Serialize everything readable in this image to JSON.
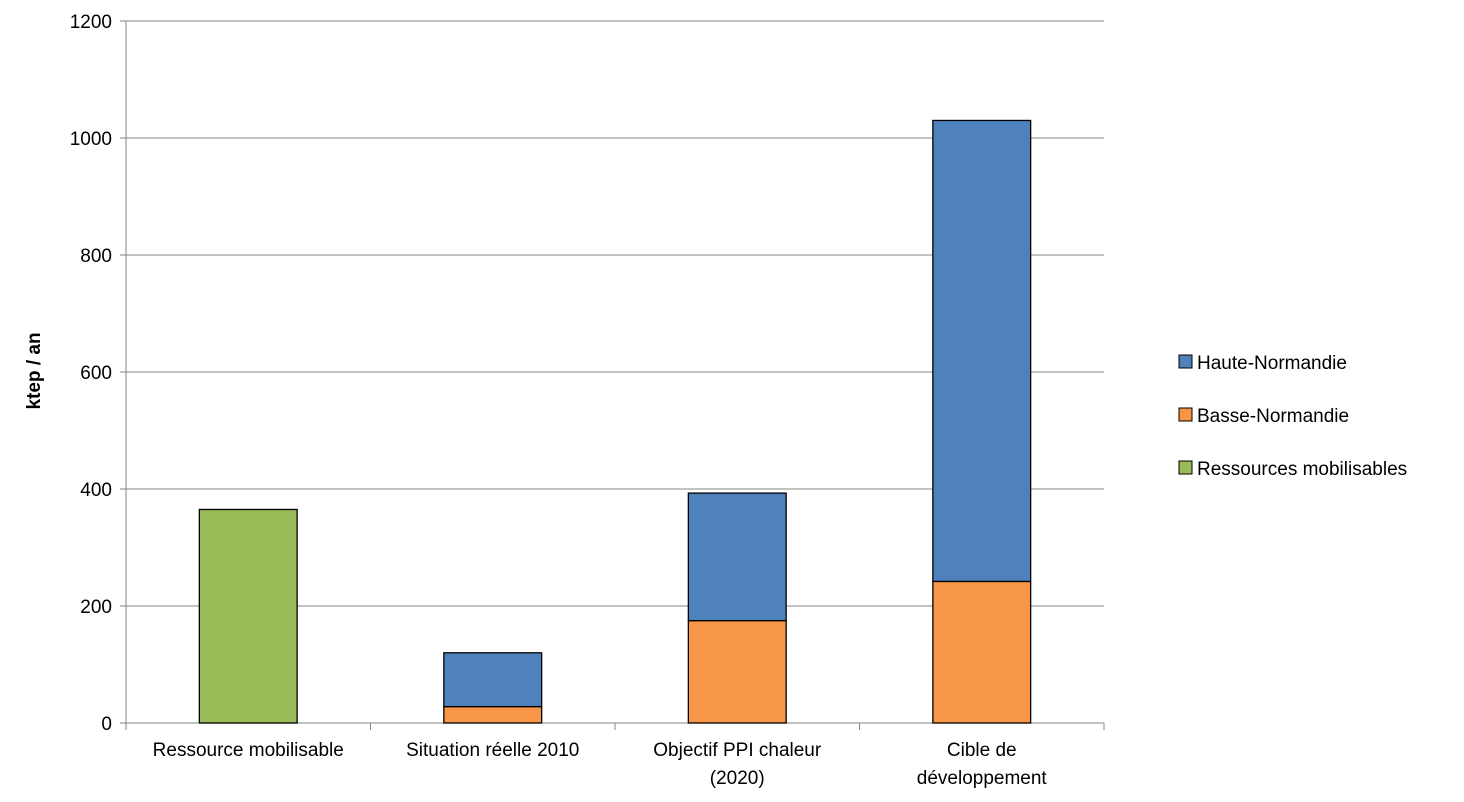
{
  "chart_data": {
    "type": "bar",
    "stacked": true,
    "title": "",
    "xlabel": "",
    "ylabel": "ktep / an",
    "ylim": [
      0,
      1200
    ],
    "yticks": [
      0,
      200,
      400,
      600,
      800,
      1000,
      1200
    ],
    "grid": true,
    "legend_position": "right",
    "categories": [
      [
        "Ressource mobilisable"
      ],
      [
        "Situation réelle 2010"
      ],
      [
        "Objectif PPI chaleur",
        "(2020)"
      ],
      [
        "Cible de",
        "développement"
      ]
    ],
    "series": [
      {
        "name": "Ressources mobilisables",
        "color": "#9bbb59",
        "values": [
          365,
          0,
          0,
          0
        ]
      },
      {
        "name": "Basse-Normandie",
        "color": "#f79646",
        "values": [
          0,
          28,
          175,
          242
        ]
      },
      {
        "name": "Haute-Normandie",
        "color": "#4f81bd",
        "values": [
          0,
          92,
          218,
          788
        ]
      }
    ],
    "legend_order": [
      "Haute-Normandie",
      "Basse-Normandie",
      "Ressources mobilisables"
    ]
  }
}
